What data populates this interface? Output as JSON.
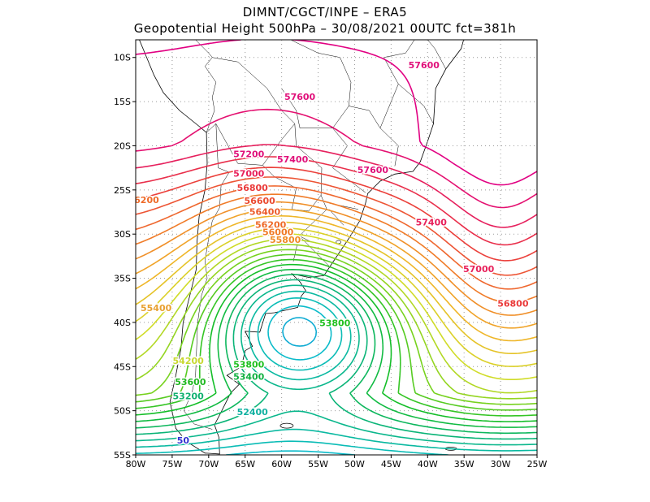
{
  "header": {
    "line1": "DIMNT/CGCT/INPE –  ERA5",
    "line2": "Geopotential Height 500hPa –  30/08/2021 00UTC fct=381h"
  },
  "map_data": {
    "type": "contour",
    "variable": "Geopotential Height 500hPa",
    "lon_range": [
      -80,
      -25
    ],
    "lat_range": [
      -55,
      -8
    ],
    "lon_ticks": [
      "80W",
      "75W",
      "70W",
      "65W",
      "60W",
      "55W",
      "50W",
      "45W",
      "40W",
      "35W",
      "30W",
      "25W"
    ],
    "lat_ticks": [
      "10S",
      "15S",
      "20S",
      "25S",
      "30S",
      "35S",
      "40S",
      "45S",
      "50S",
      "55S"
    ],
    "contour_labels": [
      {
        "text": "57600",
        "lon": -57.5,
        "lat": -14.8,
        "color": "#e0107a"
      },
      {
        "text": "57600",
        "lon": -40.5,
        "lat": -11.2,
        "color": "#e0107a"
      },
      {
        "text": "57600",
        "lon": -47.5,
        "lat": -23.1,
        "color": "#e0107a"
      },
      {
        "text": "57400",
        "lon": -58.5,
        "lat": -21.9,
        "color": "#e0107a"
      },
      {
        "text": "57400",
        "lon": -39.5,
        "lat": -29.0,
        "color": "#e8205a"
      },
      {
        "text": "57200",
        "lon": -64.5,
        "lat": -21.3,
        "color": "#e0107a"
      },
      {
        "text": "57000",
        "lon": -64.5,
        "lat": -23.5,
        "color": "#e8205a"
      },
      {
        "text": "57000",
        "lon": -33.0,
        "lat": -34.3,
        "color": "#e8205a"
      },
      {
        "text": "56800",
        "lon": -64.0,
        "lat": -25.1,
        "color": "#ea3a3a"
      },
      {
        "text": "56800",
        "lon": -28.3,
        "lat": -38.2,
        "color": "#ea3a3a"
      },
      {
        "text": "56600",
        "lon": -63.0,
        "lat": -26.6,
        "color": "#ea4a30"
      },
      {
        "text": "56400",
        "lon": -62.3,
        "lat": -27.8,
        "color": "#ec5a2a"
      },
      {
        "text": "56200",
        "lon": -61.5,
        "lat": -29.3,
        "color": "#ee6a28"
      },
      {
        "text": "56000",
        "lon": -60.5,
        "lat": -30.1,
        "color": "#f07a26"
      },
      {
        "text": "55800",
        "lon": -59.5,
        "lat": -31.0,
        "color": "#f08a26"
      },
      {
        "text": "6200",
        "lon": -78.5,
        "lat": -26.5,
        "color": "#ee6a28"
      },
      {
        "text": "55400",
        "lon": -77.2,
        "lat": -38.7,
        "color": "#e8a030"
      },
      {
        "text": "54200",
        "lon": -72.8,
        "lat": -44.7,
        "color": "#c8d830"
      },
      {
        "text": "53800",
        "lon": -52.7,
        "lat": -40.4,
        "color": "#20c020"
      },
      {
        "text": "53800",
        "lon": -64.5,
        "lat": -45.1,
        "color": "#20c020"
      },
      {
        "text": "53600",
        "lon": -72.5,
        "lat": -47.1,
        "color": "#20b820"
      },
      {
        "text": "53400",
        "lon": -64.5,
        "lat": -46.5,
        "color": "#10b040"
      },
      {
        "text": "53200",
        "lon": -72.8,
        "lat": -48.7,
        "color": "#10b070"
      },
      {
        "text": "52400",
        "lon": -64.0,
        "lat": -50.5,
        "color": "#10b0a0"
      },
      {
        "text": "50",
        "lon": -73.5,
        "lat": -53.7,
        "color": "#3030d0"
      }
    ]
  }
}
